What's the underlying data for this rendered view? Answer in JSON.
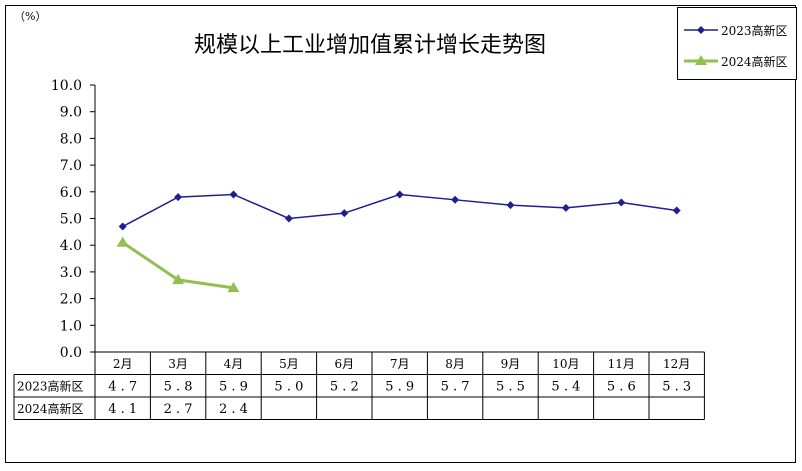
{
  "unit_label": "（%）",
  "chart_data": {
    "type": "line",
    "title": "规模以上工业增加值累计增长走势图",
    "categories": [
      "2月",
      "3月",
      "4月",
      "5月",
      "6月",
      "7月",
      "8月",
      "9月",
      "10月",
      "11月",
      "12月"
    ],
    "ylim": [
      0,
      10
    ],
    "ytick_labels": [
      "0.0",
      "1.0",
      "2.0",
      "3.0",
      "4.0",
      "5.0",
      "6.0",
      "7.0",
      "8.0",
      "9.0",
      "10.0"
    ],
    "legend_position": "top-right",
    "grid": false,
    "series": [
      {
        "name": "2023高新区",
        "color": "#1f1f8f",
        "marker": "diamond",
        "values": [
          4.7,
          5.8,
          5.9,
          5.0,
          5.2,
          5.9,
          5.7,
          5.5,
          5.4,
          5.6,
          5.3
        ],
        "labels": [
          "4.7",
          "5.8",
          "5.9",
          "5.0",
          "5.2",
          "5.9",
          "5.7",
          "5.5",
          "5.4",
          "5.6",
          "5.3"
        ]
      },
      {
        "name": "2024高新区",
        "color": "#92c050",
        "marker": "triangle",
        "values": [
          4.1,
          2.7,
          2.4,
          null,
          null,
          null,
          null,
          null,
          null,
          null,
          null
        ],
        "labels": [
          "4.1",
          "2.7",
          "2.4",
          "",
          "",
          "",
          "",
          "",
          "",
          "",
          ""
        ]
      }
    ]
  }
}
